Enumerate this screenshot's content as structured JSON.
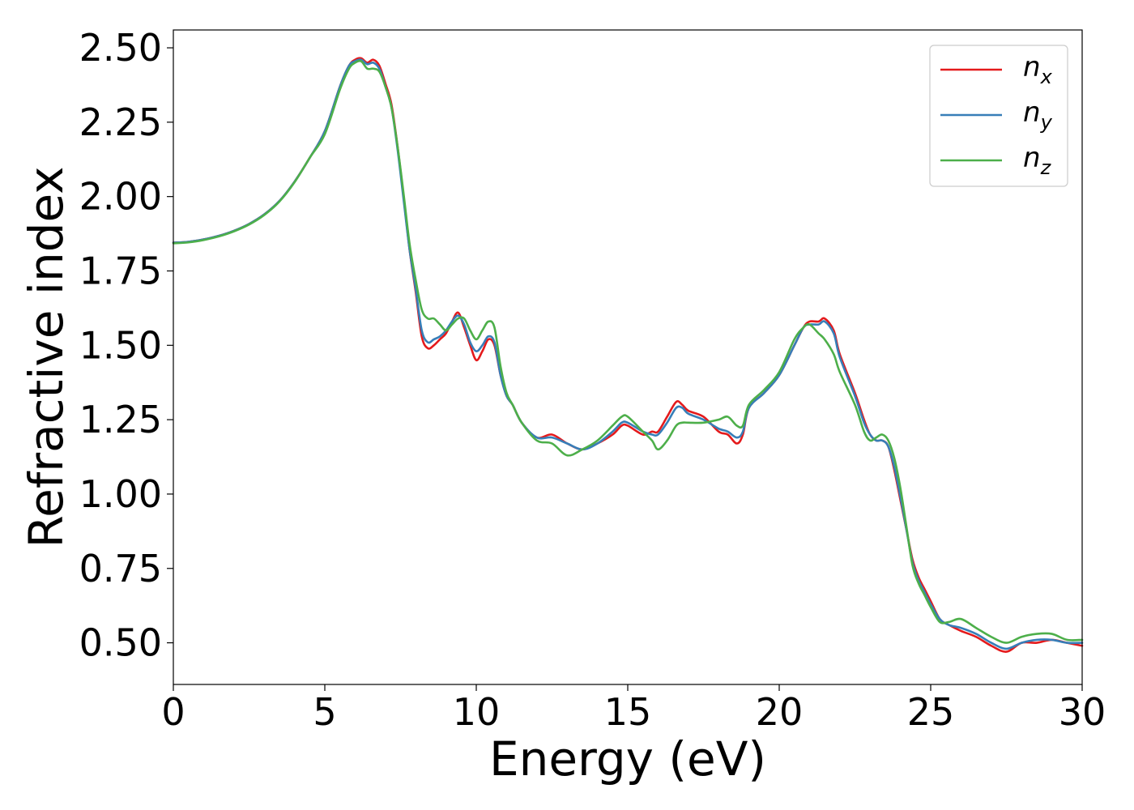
{
  "chart_data": {
    "type": "line",
    "xlabel": "Energy (eV)",
    "ylabel": "Refractive index",
    "xlim": [
      0,
      30
    ],
    "ylim": [
      0.36,
      2.56
    ],
    "xticks": [
      0,
      5,
      10,
      15,
      20,
      25,
      30
    ],
    "xtick_labels": [
      "0",
      "5",
      "10",
      "15",
      "20",
      "25",
      "30"
    ],
    "yticks": [
      0.5,
      0.75,
      1.0,
      1.25,
      1.5,
      1.75,
      2.0,
      2.25,
      2.5
    ],
    "ytick_labels": [
      "0.50",
      "0.75",
      "1.00",
      "1.25",
      "1.50",
      "1.75",
      "2.00",
      "2.25",
      "2.50"
    ],
    "grid": false,
    "legend_position": "top-right",
    "x": [
      0,
      0.5,
      1,
      1.5,
      2,
      2.5,
      3,
      3.5,
      4,
      4.5,
      5,
      5.5,
      5.8,
      6,
      6.2,
      6.4,
      6.6,
      6.8,
      7,
      7.2,
      7.4,
      7.6,
      7.8,
      8,
      8.2,
      8.4,
      8.6,
      8.8,
      9,
      9.2,
      9.4,
      9.6,
      9.8,
      10,
      10.2,
      10.4,
      10.6,
      10.8,
      11,
      11.2,
      11.5,
      12,
      12.5,
      13,
      13.5,
      14,
      14.5,
      14.8,
      15,
      15.5,
      15.8,
      16,
      16.3,
      16.6,
      16.8,
      17,
      17.5,
      18,
      18.3,
      18.6,
      18.8,
      19,
      19.5,
      20,
      20.5,
      20.8,
      21,
      21.3,
      21.5,
      21.8,
      22,
      22.5,
      22.8,
      23,
      23.2,
      23.4,
      23.6,
      23.8,
      24,
      24.2,
      24.4,
      24.6,
      24.8,
      25,
      25.3,
      25.6,
      26,
      26.5,
      27,
      27.5,
      28,
      28.5,
      29,
      29.5,
      30
    ],
    "series": [
      {
        "name": "n",
        "sub": "x",
        "color": "#e41a1c",
        "y": [
          1.845,
          1.848,
          1.856,
          1.868,
          1.885,
          1.908,
          1.94,
          1.985,
          2.05,
          2.13,
          2.22,
          2.37,
          2.44,
          2.46,
          2.465,
          2.45,
          2.46,
          2.44,
          2.38,
          2.31,
          2.17,
          2.0,
          1.82,
          1.68,
          1.53,
          1.49,
          1.5,
          1.52,
          1.54,
          1.58,
          1.61,
          1.56,
          1.5,
          1.45,
          1.48,
          1.52,
          1.5,
          1.4,
          1.33,
          1.3,
          1.24,
          1.19,
          1.2,
          1.17,
          1.15,
          1.17,
          1.2,
          1.23,
          1.23,
          1.2,
          1.21,
          1.21,
          1.26,
          1.31,
          1.3,
          1.28,
          1.26,
          1.21,
          1.2,
          1.17,
          1.2,
          1.29,
          1.34,
          1.4,
          1.5,
          1.56,
          1.58,
          1.58,
          1.59,
          1.55,
          1.47,
          1.34,
          1.25,
          1.2,
          1.18,
          1.18,
          1.16,
          1.08,
          0.98,
          0.88,
          0.78,
          0.72,
          0.68,
          0.64,
          0.58,
          0.56,
          0.54,
          0.52,
          0.49,
          0.47,
          0.5,
          0.5,
          0.51,
          0.5,
          0.49
        ]
      },
      {
        "name": "n",
        "sub": "y",
        "color": "#377eb8",
        "y": [
          1.845,
          1.848,
          1.856,
          1.868,
          1.885,
          1.908,
          1.94,
          1.985,
          2.05,
          2.13,
          2.22,
          2.37,
          2.44,
          2.455,
          2.46,
          2.445,
          2.45,
          2.43,
          2.37,
          2.3,
          2.16,
          1.99,
          1.82,
          1.69,
          1.55,
          1.51,
          1.52,
          1.53,
          1.55,
          1.58,
          1.6,
          1.57,
          1.51,
          1.48,
          1.5,
          1.53,
          1.51,
          1.4,
          1.33,
          1.3,
          1.24,
          1.19,
          1.19,
          1.17,
          1.15,
          1.17,
          1.21,
          1.24,
          1.24,
          1.21,
          1.2,
          1.2,
          1.24,
          1.29,
          1.29,
          1.27,
          1.25,
          1.22,
          1.21,
          1.19,
          1.21,
          1.29,
          1.34,
          1.4,
          1.5,
          1.56,
          1.57,
          1.57,
          1.58,
          1.54,
          1.46,
          1.33,
          1.24,
          1.2,
          1.18,
          1.18,
          1.16,
          1.09,
          0.99,
          0.88,
          0.77,
          0.71,
          0.67,
          0.63,
          0.58,
          0.56,
          0.55,
          0.53,
          0.5,
          0.48,
          0.5,
          0.51,
          0.51,
          0.5,
          0.5
        ]
      },
      {
        "name": "n",
        "sub": "z",
        "color": "#4daf4a",
        "y": [
          1.843,
          1.846,
          1.854,
          1.866,
          1.883,
          1.906,
          1.938,
          1.983,
          2.048,
          2.13,
          2.21,
          2.36,
          2.43,
          2.45,
          2.455,
          2.43,
          2.43,
          2.42,
          2.37,
          2.3,
          2.17,
          2.01,
          1.84,
          1.72,
          1.62,
          1.59,
          1.59,
          1.57,
          1.55,
          1.57,
          1.59,
          1.59,
          1.55,
          1.52,
          1.55,
          1.58,
          1.56,
          1.43,
          1.34,
          1.3,
          1.24,
          1.18,
          1.17,
          1.13,
          1.15,
          1.18,
          1.23,
          1.26,
          1.26,
          1.21,
          1.18,
          1.15,
          1.18,
          1.23,
          1.24,
          1.24,
          1.24,
          1.25,
          1.26,
          1.23,
          1.23,
          1.3,
          1.35,
          1.41,
          1.52,
          1.56,
          1.57,
          1.54,
          1.52,
          1.47,
          1.41,
          1.3,
          1.21,
          1.18,
          1.19,
          1.2,
          1.18,
          1.12,
          1.02,
          0.89,
          0.76,
          0.7,
          0.66,
          0.62,
          0.57,
          0.57,
          0.58,
          0.55,
          0.52,
          0.5,
          0.52,
          0.53,
          0.53,
          0.51,
          0.51
        ]
      }
    ]
  }
}
